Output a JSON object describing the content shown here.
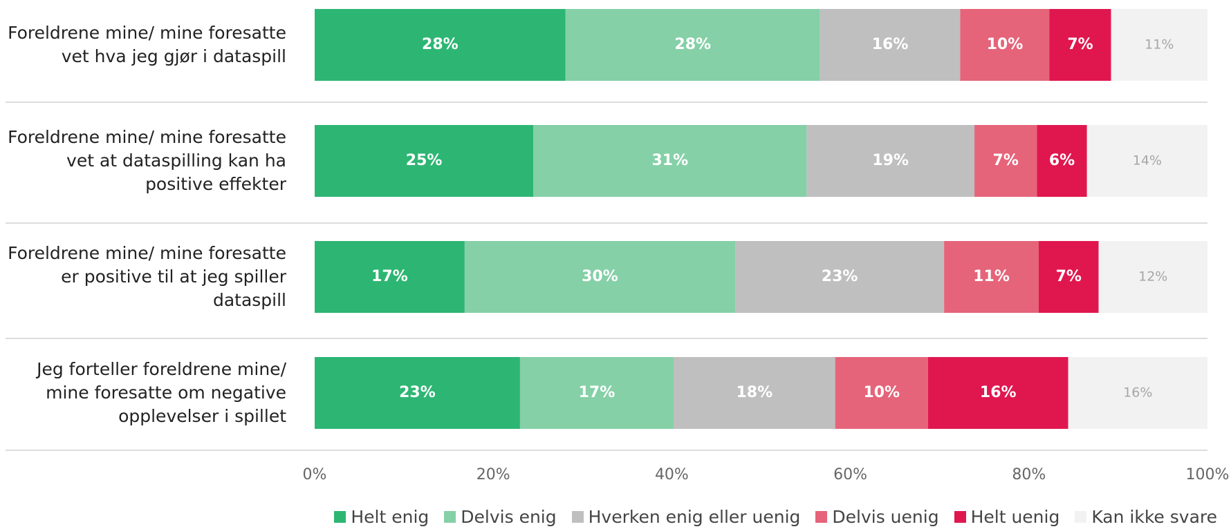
{
  "chart_data": {
    "type": "stacked_barh",
    "categories": [
      "Foreldrene mine/ mine foresatte vet hva jeg gjør i dataspill",
      "Foreldrene mine/ mine foresatte vet at dataspilling kan ha positive effekter",
      "Foreldrene mine/ mine foresatte er positive til at jeg spiller dataspill",
      "Jeg forteller foreldrene mine/ mine foresatte om negative opplevelser i spillet"
    ],
    "series": [
      {
        "name": "Helt enig",
        "color": "#2db673",
        "label_color": "#ffffff",
        "values": [
          28.1,
          24.5,
          16.8,
          23.0
        ],
        "value_labels": [
          "28%",
          "25%",
          "17%",
          "23%"
        ]
      },
      {
        "name": "Delvis enig",
        "color": "#85d0a7",
        "label_color": "#ffffff",
        "values": [
          28.5,
          30.6,
          30.3,
          17.2
        ],
        "value_labels": [
          "28%",
          "31%",
          "30%",
          "17%"
        ]
      },
      {
        "name": "Hverken enig eller uenig",
        "color": "#bfbfbf",
        "label_color": "#ffffff",
        "values": [
          15.7,
          18.8,
          23.4,
          18.1
        ],
        "value_labels": [
          "16%",
          "19%",
          "23%",
          "18%"
        ]
      },
      {
        "name": "Delvis uenig",
        "color": "#e5647a",
        "label_color": "#ffffff",
        "values": [
          10.0,
          7.0,
          10.6,
          10.4
        ],
        "value_labels": [
          "10%",
          "7%",
          "11%",
          "10%"
        ]
      },
      {
        "name": "Helt uenig",
        "color": "#e0174f",
        "label_color": "#ffffff",
        "values": [
          6.9,
          5.6,
          6.7,
          15.7
        ],
        "value_labels": [
          "7%",
          "6%",
          "7%",
          "16%"
        ]
      },
      {
        "name": "Kan ikke svare",
        "color": "#f2f2f2",
        "label_color": "#a6a6a6",
        "values": [
          10.8,
          13.5,
          12.2,
          15.6
        ],
        "value_labels": [
          "11%",
          "14%",
          "12%",
          "16%"
        ]
      }
    ],
    "xlim": [
      0,
      100
    ],
    "xticks": [
      {
        "value": 0,
        "label": "0%"
      },
      {
        "value": 20,
        "label": "20%"
      },
      {
        "value": 40,
        "label": "40%"
      },
      {
        "value": 60,
        "label": "60%"
      },
      {
        "value": 80,
        "label": "80%"
      },
      {
        "value": 100,
        "label": "100%"
      }
    ],
    "legend": "bottom-right"
  }
}
